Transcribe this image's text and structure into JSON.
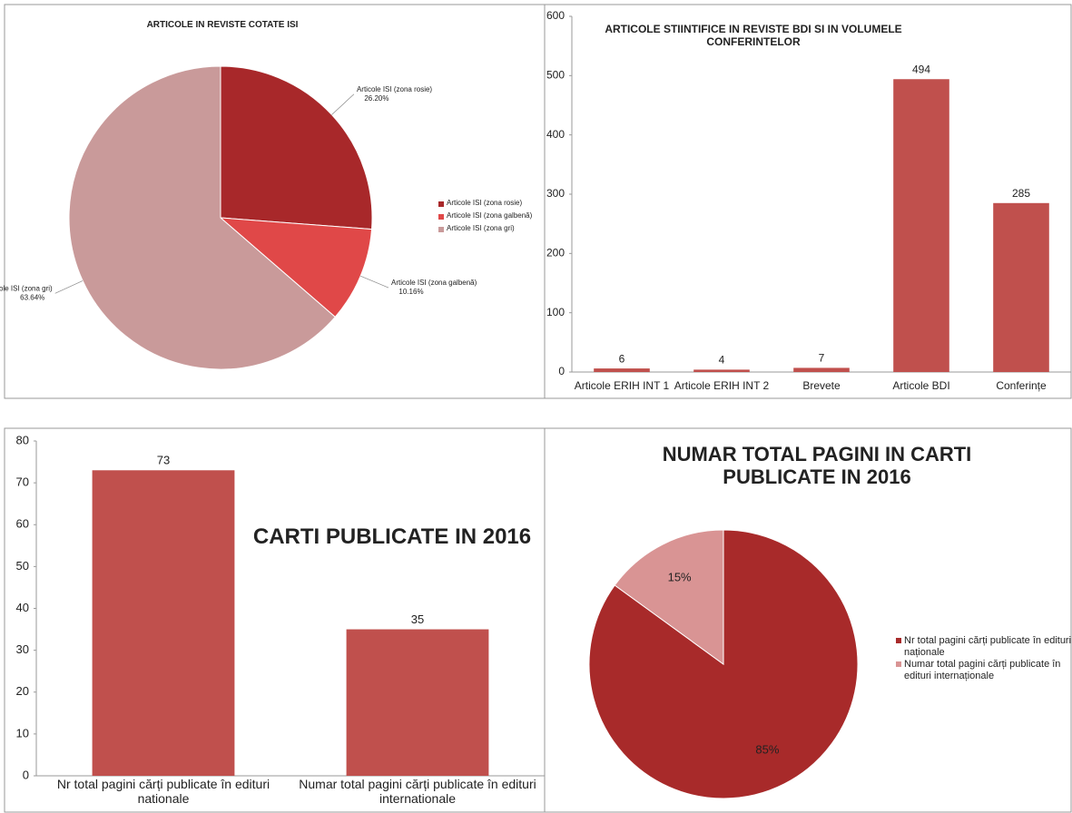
{
  "chart_data": [
    {
      "type": "pie",
      "title": "ARTICOLE IN REVISTE COTATE ISI",
      "categories": [
        "Articole ISI (zona rosie)",
        "Articole ISI (zona galbenă)",
        "Articole ISI (zona gri)"
      ],
      "values": [
        26.2,
        10.16,
        63.64
      ],
      "value_labels": [
        "26.20%",
        "10.16%",
        "63.64%"
      ],
      "colors": [
        "#a8282a",
        "#e04848",
        "#c99a9a"
      ],
      "legend": "right"
    },
    {
      "type": "bar",
      "title": "ARTICOLE STIINTIFICE IN REVISTE BDI SI IN VOLUMELE CONFERINTELOR",
      "categories": [
        "Articole ERIH INT 1",
        "Articole ERIH INT 2",
        "Brevete",
        "Articole BDI",
        "Conferințe"
      ],
      "values": [
        6,
        4,
        7,
        494,
        285
      ],
      "color": "#c0504d",
      "ylim": [
        0,
        600
      ],
      "yticks": [
        0,
        100,
        200,
        300,
        400,
        500,
        600
      ]
    },
    {
      "type": "bar",
      "title": "CARTI PUBLICATE IN 2016",
      "categories": [
        "Nr total pagini cărți publicate în edituri nationale",
        "Numar total pagini cărți publicate în edituri internationale"
      ],
      "values": [
        73,
        35
      ],
      "color": "#c0504d",
      "ylim": [
        0,
        80
      ],
      "yticks": [
        0,
        10,
        20,
        30,
        40,
        50,
        60,
        70,
        80
      ]
    },
    {
      "type": "pie",
      "title": "NUMAR TOTAL PAGINI IN CARTI PUBLICATE IN 2016",
      "categories": [
        "Nr total pagini cărți publicate în edituri naționale",
        "Numar total pagini cărți publicate în edituri internaționale"
      ],
      "values": [
        85,
        15
      ],
      "value_labels": [
        "85%",
        "15%"
      ],
      "colors": [
        "#a82a2a",
        "#d99494"
      ],
      "legend": "right"
    }
  ]
}
